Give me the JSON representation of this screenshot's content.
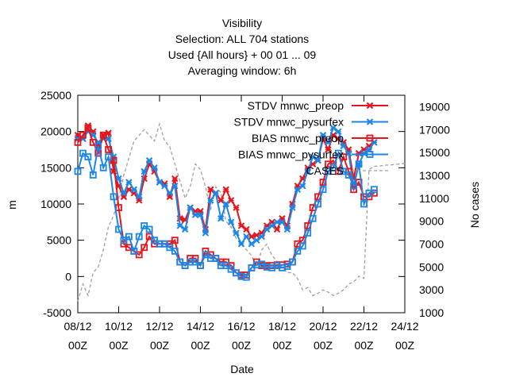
{
  "chart_data": {
    "type": "line",
    "title_lines": [
      "Visibility",
      "Selection: ALL    704 stations",
      "Used {All hours} + 00 01 ... 09",
      "Averaging window:  6h"
    ],
    "xlabel": "Date",
    "ylabel": "m",
    "y2label": "No cases",
    "x_ticks": [
      {
        "t": 0,
        "date": "08/12",
        "hour": "00Z"
      },
      {
        "t": 2,
        "date": "10/12",
        "hour": "00Z"
      },
      {
        "t": 4,
        "date": "12/12",
        "hour": "00Z"
      },
      {
        "t": 6,
        "date": "14/12",
        "hour": "00Z"
      },
      {
        "t": 8,
        "date": "16/12",
        "hour": "00Z"
      },
      {
        "t": 10,
        "date": "18/12",
        "hour": "00Z"
      },
      {
        "t": 12,
        "date": "20/12",
        "hour": "00Z"
      },
      {
        "t": 14,
        "date": "22/12",
        "hour": "00Z"
      },
      {
        "t": 16,
        "date": "24/12",
        "hour": "00Z"
      }
    ],
    "xlim": [
      0,
      16
    ],
    "ylim": [
      -5000,
      25000
    ],
    "y_ticks": [
      -5000,
      0,
      5000,
      10000,
      15000,
      20000,
      25000
    ],
    "y2lim": [
      1000,
      20000
    ],
    "y2_ticks": [
      1000,
      3000,
      5000,
      7000,
      9000,
      11000,
      13000,
      15000,
      17000,
      19000
    ],
    "legend_position": "top-right",
    "series": [
      {
        "name": "STDV mnwc_preop",
        "color": "#e8141c",
        "marker": "cross",
        "axis": "y",
        "x": [
          0,
          0.25,
          0.5,
          0.75,
          1,
          1.25,
          1.5,
          1.75,
          2,
          2.25,
          2.5,
          2.75,
          3,
          3.25,
          3.5,
          3.75,
          4,
          4.25,
          4.5,
          4.75,
          5,
          5.25,
          5.5,
          5.75,
          6,
          6.25,
          6.5,
          6.75,
          7,
          7.25,
          7.5,
          7.75,
          8,
          8.25,
          8.5,
          8.75,
          9,
          9.25,
          9.5,
          9.75,
          10,
          10.25,
          10.5,
          10.75,
          11,
          11.25,
          11.5,
          11.75,
          12,
          12.25,
          12.5,
          12.75,
          13,
          13.25,
          13.5,
          13.75,
          14,
          14.25,
          14.5
        ],
        "y": [
          19500,
          19000,
          20800,
          20000,
          18000,
          19500,
          19800,
          14500,
          12500,
          11000,
          12000,
          11500,
          10500,
          13500,
          15500,
          14500,
          13000,
          12800,
          11000,
          13500,
          8000,
          7800,
          9500,
          9000,
          9000,
          6500,
          12000,
          11500,
          10500,
          12000,
          10500,
          9500,
          7000,
          6500,
          5500,
          5700,
          6000,
          7000,
          7500,
          6500,
          8000,
          7000,
          10000,
          12500,
          13500,
          15000,
          15500,
          16000,
          19000,
          17500,
          19500,
          19000,
          18500,
          17500,
          13500,
          17000,
          17500,
          18000,
          18500
        ]
      },
      {
        "name": "STDV mnwc_pysurfex",
        "color": "#1a86e8",
        "marker": "cross",
        "axis": "y",
        "x": [
          0,
          0.25,
          0.5,
          0.75,
          1,
          1.25,
          1.5,
          1.75,
          2,
          2.25,
          2.5,
          2.75,
          3,
          3.25,
          3.5,
          3.75,
          4,
          4.25,
          4.5,
          4.75,
          5,
          5.25,
          5.5,
          5.75,
          6,
          6.25,
          6.5,
          6.75,
          7,
          7.25,
          7.5,
          7.75,
          8,
          8.25,
          8.5,
          8.75,
          9,
          9.25,
          9.5,
          9.75,
          10,
          10.25,
          10.5,
          10.75,
          11,
          11.25,
          11.5,
          11.75,
          12,
          12.25,
          12.5,
          12.75,
          13,
          13.25,
          13.5,
          13.75,
          14,
          14.25,
          14.5
        ],
        "y": [
          19000,
          19000,
          20000,
          19500,
          18500,
          19000,
          19000,
          16500,
          13500,
          11500,
          13000,
          12000,
          11000,
          14500,
          16000,
          15000,
          13000,
          12500,
          11500,
          12500,
          7000,
          6500,
          9500,
          8500,
          8500,
          6000,
          10500,
          11500,
          8000,
          10000,
          7500,
          6000,
          4500,
          5500,
          4500,
          5000,
          5500,
          6500,
          7000,
          7500,
          7500,
          6500,
          9500,
          12000,
          12500,
          14500,
          16500,
          16000,
          19500,
          18500,
          20500,
          20000,
          18000,
          17000,
          12500,
          15500,
          17000,
          17500,
          18500
        ]
      },
      {
        "name": "BIAS mnwc_preop",
        "color": "#e8141c",
        "marker": "square",
        "axis": "y",
        "x": [
          0,
          0.25,
          0.5,
          0.75,
          1,
          1.25,
          1.5,
          1.75,
          2,
          2.25,
          2.5,
          2.75,
          3,
          3.25,
          3.5,
          3.75,
          4,
          4.25,
          4.5,
          4.75,
          5,
          5.25,
          5.5,
          5.75,
          6,
          6.25,
          6.5,
          6.75,
          7,
          7.25,
          7.5,
          7.75,
          8,
          8.25,
          8.5,
          8.75,
          9,
          9.25,
          9.5,
          9.75,
          10,
          10.25,
          10.5,
          10.75,
          11,
          11.25,
          11.5,
          11.75,
          12,
          12.25,
          12.5,
          12.75,
          13,
          13.25,
          13.5,
          13.75,
          14,
          14.25,
          14.5
        ],
        "y": [
          18500,
          19500,
          20500,
          18500,
          17000,
          19500,
          17500,
          16000,
          9500,
          4500,
          4000,
          3500,
          3000,
          4000,
          5500,
          4500,
          4500,
          4500,
          4500,
          5000,
          2000,
          1500,
          2500,
          2500,
          1500,
          3500,
          3000,
          2500,
          2000,
          2000,
          1500,
          500,
          200,
          200,
          1200,
          2000,
          1500,
          1500,
          1500,
          1600,
          1600,
          1700,
          2000,
          4500,
          5000,
          7000,
          9500,
          11000,
          13000,
          15500,
          16000,
          14500,
          16500,
          14500,
          12000,
          13000,
          11000,
          11000,
          11500
        ]
      },
      {
        "name": "BIAS mnwc_pysurfex",
        "color": "#1a86e8",
        "marker": "square",
        "axis": "y",
        "x": [
          0,
          0.25,
          0.5,
          0.75,
          1,
          1.25,
          1.5,
          1.75,
          2,
          2.25,
          2.5,
          2.75,
          3,
          3.25,
          3.5,
          3.75,
          4,
          4.25,
          4.5,
          4.75,
          5,
          5.25,
          5.5,
          5.75,
          6,
          6.25,
          6.5,
          6.75,
          7,
          7.25,
          7.5,
          7.75,
          8,
          8.25,
          8.5,
          8.75,
          9,
          9.25,
          9.5,
          9.75,
          10,
          10.25,
          10.5,
          10.75,
          11,
          11.25,
          11.5,
          11.75,
          12,
          12.25,
          12.5,
          12.75,
          13,
          13.25,
          13.5,
          13.75,
          14,
          14.25,
          14.5
        ],
        "y": [
          14500,
          17000,
          16500,
          14000,
          18000,
          15000,
          16500,
          11000,
          6500,
          5000,
          5500,
          3500,
          5500,
          7000,
          6500,
          5000,
          4500,
          4500,
          4000,
          3500,
          2000,
          1500,
          2000,
          2000,
          1500,
          3000,
          2500,
          2500,
          1500,
          1500,
          1000,
          500,
          0,
          -100,
          1200,
          1600,
          1700,
          1300,
          1200,
          1500,
          1200,
          1400,
          2000,
          3500,
          4200,
          6000,
          8000,
          10000,
          12000,
          14500,
          15000,
          17000,
          14500,
          14000,
          12500,
          15500,
          10000,
          11500,
          12000
        ]
      },
      {
        "name": "CASES",
        "color": "#a0a0a0",
        "marker": "none",
        "dash": "dashed",
        "axis": "y2",
        "x": [
          0,
          0.25,
          0.5,
          0.75,
          1,
          1.25,
          1.5,
          1.75,
          2,
          2.25,
          2.5,
          2.75,
          3,
          3.25,
          3.5,
          3.75,
          4,
          4.25,
          4.5,
          4.75,
          5,
          5.25,
          5.5,
          5.75,
          6,
          6.25,
          6.5,
          6.75,
          7,
          7.25,
          7.5,
          7.75,
          8,
          8.25,
          8.5,
          8.75,
          9,
          9.25,
          9.5,
          9.75,
          10,
          10.25,
          10.5,
          10.75,
          11,
          11.25,
          11.5,
          11.75,
          12,
          12.25,
          12.5,
          12.75,
          13,
          13.25,
          13.5,
          13.75,
          14,
          14.25,
          14.5,
          14.75,
          15,
          15.25,
          15.5,
          15.75,
          16
        ],
        "y": [
          2000,
          3500,
          2500,
          4500,
          5000,
          6500,
          8500,
          9500,
          11000,
          13000,
          14500,
          16000,
          16500,
          17000,
          16500,
          16000,
          17500,
          16000,
          15500,
          14000,
          12500,
          11000,
          12000,
          14000,
          13500,
          12000,
          10000,
          12000,
          11500,
          9000,
          8500,
          7500,
          7000,
          6500,
          6000,
          5000,
          6500,
          7000,
          6000,
          5500,
          5000,
          4500,
          4500,
          4000,
          3000,
          3200,
          2500,
          2700,
          3000,
          2800,
          2500,
          2700,
          3000,
          3500,
          3700,
          4200,
          4000,
          13500,
          13800,
          13800,
          13900,
          13900,
          13950,
          14000,
          14050
        ]
      }
    ]
  }
}
